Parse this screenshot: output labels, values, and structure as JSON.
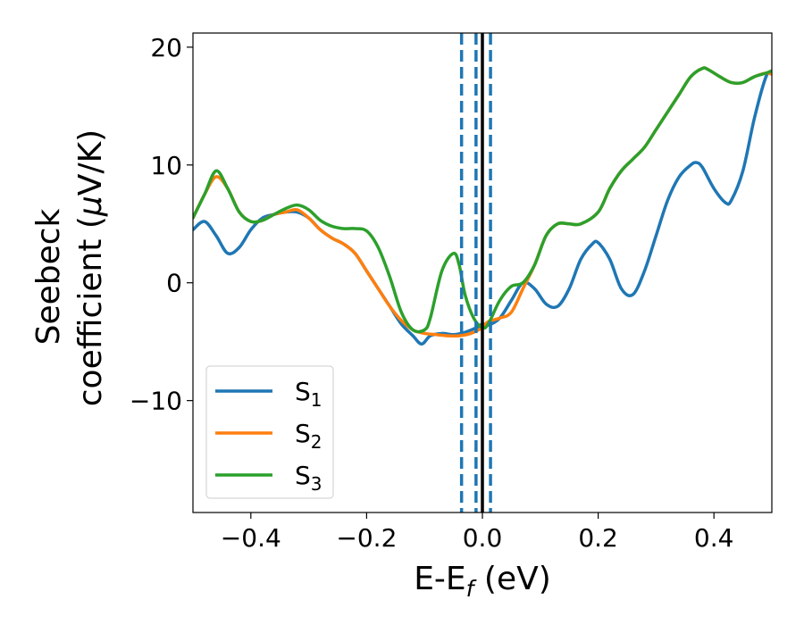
{
  "chart_data": {
    "type": "line",
    "xlabel": "E-E",
    "xlabel_sub": "f",
    "xlabel_unit": " (eV)",
    "ylabel_line1": "Seebeck",
    "ylabel_line2": "coefficient  (",
    "ylabel_mu": "μ",
    "ylabel_unit": "V/K)",
    "xlim": [
      -0.5,
      0.5
    ],
    "ylim": [
      -19.5,
      21.2
    ],
    "xticks": [
      -0.4,
      -0.2,
      0.0,
      0.2,
      0.4
    ],
    "xtick_labels": [
      "−0.4",
      "−0.2",
      "0.0",
      "0.2",
      "0.4"
    ],
    "yticks": [
      -10,
      0,
      10,
      20
    ],
    "ytick_labels": [
      "−10",
      "0",
      "10",
      "20"
    ],
    "legend_position": "lower-left",
    "grid": false,
    "vlines": [
      {
        "x": -0.036,
        "style": "dashed",
        "color": "#1f77b4"
      },
      {
        "x": -0.011,
        "style": "dashed",
        "color": "#1f77b4"
      },
      {
        "x": 0.014,
        "style": "dashed",
        "color": "#1f77b4"
      },
      {
        "x": 0.0,
        "style": "solid",
        "color": "#000000"
      }
    ],
    "series": [
      {
        "name": "S",
        "sub": "1",
        "color": "#1f77b4",
        "x": [
          -0.5,
          -0.48,
          -0.46,
          -0.44,
          -0.42,
          -0.4,
          -0.38,
          -0.36,
          -0.34,
          -0.32,
          -0.3,
          -0.28,
          -0.26,
          -0.24,
          -0.22,
          -0.2,
          -0.18,
          -0.16,
          -0.14,
          -0.12,
          -0.105,
          -0.09,
          -0.07,
          -0.05,
          -0.03,
          -0.01,
          0.0,
          0.01,
          0.03,
          0.05,
          0.07,
          0.09,
          0.11,
          0.13,
          0.15,
          0.17,
          0.19,
          0.2,
          0.22,
          0.24,
          0.26,
          0.28,
          0.3,
          0.32,
          0.34,
          0.36,
          0.37,
          0.38,
          0.4,
          0.42,
          0.43,
          0.45,
          0.47,
          0.49,
          0.5
        ],
        "y": [
          4.5,
          5.2,
          4.0,
          2.5,
          3.0,
          4.5,
          5.5,
          5.8,
          6.0,
          6.0,
          5.5,
          4.5,
          3.8,
          3.3,
          2.5,
          1.0,
          -0.5,
          -2.0,
          -3.5,
          -4.5,
          -5.2,
          -4.5,
          -4.3,
          -4.4,
          -4.2,
          -3.8,
          -3.5,
          -3.6,
          -3.0,
          -1.5,
          0.0,
          -0.5,
          -1.8,
          -2.0,
          -0.5,
          2.0,
          3.3,
          3.4,
          2.0,
          -0.5,
          -1.0,
          1.0,
          4.0,
          7.0,
          9.0,
          10.0,
          10.2,
          9.8,
          8.0,
          6.8,
          7.0,
          9.5,
          14.0,
          17.5,
          17.8
        ]
      },
      {
        "name": "S",
        "sub": "2",
        "color": "#ff7f0e",
        "x": [
          -0.5,
          -0.48,
          -0.46,
          -0.44,
          -0.42,
          -0.4,
          -0.38,
          -0.36,
          -0.34,
          -0.32,
          -0.3,
          -0.28,
          -0.26,
          -0.24,
          -0.22,
          -0.2,
          -0.18,
          -0.16,
          -0.14,
          -0.12,
          -0.1,
          -0.08,
          -0.06,
          -0.04,
          -0.02,
          0.0,
          0.01,
          0.03,
          0.05,
          0.07,
          0.09,
          0.11,
          0.13,
          0.15,
          0.17,
          0.2,
          0.22,
          0.24,
          0.26,
          0.28,
          0.3,
          0.32,
          0.34,
          0.36,
          0.38,
          0.39,
          0.41,
          0.43,
          0.45,
          0.47,
          0.49,
          0.5
        ],
        "y": [
          5.5,
          7.5,
          9.0,
          8.0,
          6.0,
          5.2,
          5.3,
          5.8,
          6.0,
          6.2,
          5.5,
          4.5,
          3.8,
          3.3,
          2.5,
          1.0,
          -0.5,
          -2.0,
          -3.2,
          -4.0,
          -4.3,
          -4.4,
          -4.5,
          -4.5,
          -4.3,
          -3.8,
          -3.3,
          -3.0,
          -2.5,
          -0.5,
          1.5,
          4.0,
          5.0,
          5.0,
          5.0,
          6.0,
          8.0,
          9.5,
          10.5,
          11.5,
          13.0,
          14.5,
          16.0,
          17.5,
          18.2,
          18.1,
          17.5,
          17.0,
          17.0,
          17.5,
          17.8,
          17.7
        ]
      },
      {
        "name": "S",
        "sub": "3",
        "color": "#2ca02c",
        "x": [
          -0.5,
          -0.48,
          -0.46,
          -0.44,
          -0.42,
          -0.4,
          -0.38,
          -0.36,
          -0.34,
          -0.32,
          -0.3,
          -0.28,
          -0.26,
          -0.24,
          -0.22,
          -0.2,
          -0.18,
          -0.16,
          -0.14,
          -0.12,
          -0.1,
          -0.09,
          -0.07,
          -0.05,
          -0.04,
          -0.03,
          -0.015,
          0.0,
          0.01,
          0.03,
          0.05,
          0.07,
          0.09,
          0.11,
          0.13,
          0.15,
          0.17,
          0.2,
          0.22,
          0.24,
          0.26,
          0.28,
          0.3,
          0.32,
          0.34,
          0.36,
          0.38,
          0.39,
          0.41,
          0.43,
          0.45,
          0.47,
          0.49,
          0.5
        ],
        "y": [
          5.5,
          7.5,
          9.5,
          8.0,
          6.0,
          5.2,
          5.3,
          5.8,
          6.3,
          6.6,
          6.2,
          5.3,
          4.8,
          4.6,
          4.6,
          4.4,
          3.0,
          0.5,
          -2.5,
          -4.0,
          -4.0,
          -3.0,
          1.0,
          2.5,
          1.5,
          -1.0,
          -3.0,
          -3.8,
          -3.5,
          -1.5,
          -0.3,
          0.0,
          1.5,
          4.0,
          5.0,
          5.0,
          5.0,
          6.0,
          8.0,
          9.5,
          10.5,
          11.5,
          13.0,
          14.5,
          16.0,
          17.5,
          18.2,
          18.1,
          17.5,
          17.0,
          17.0,
          17.5,
          17.8,
          18.0
        ]
      }
    ]
  }
}
